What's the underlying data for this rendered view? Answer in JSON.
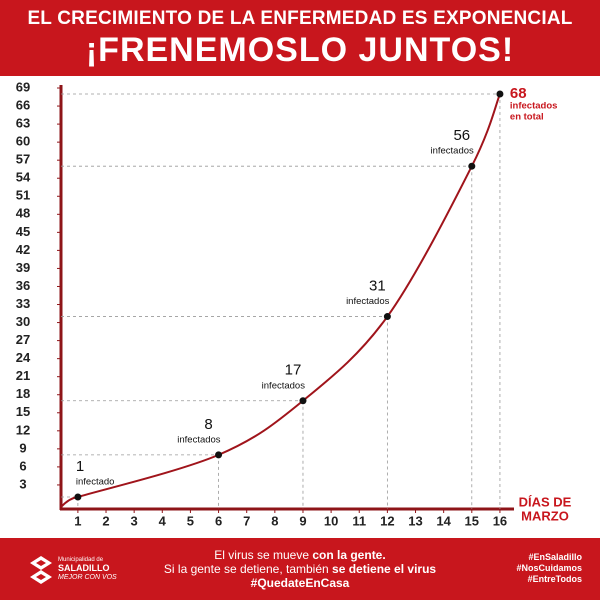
{
  "header": {
    "title_lines": [
      "EL CRECIMIENTO DE LA ENFERMEDAD ES EXPONENCIAL",
      "¡FRENEMOSLO JUNTOS!"
    ]
  },
  "chart_data": {
    "type": "line",
    "x_label_lines": [
      "DÍAS DE",
      "MARZO"
    ],
    "x": [
      1,
      6,
      9,
      12,
      15,
      16
    ],
    "series": [
      {
        "name": "infectados",
        "color": "#a0141b",
        "values": [
          1,
          8,
          17,
          31,
          56,
          68
        ]
      }
    ],
    "notes": [
      [
        "infectado"
      ],
      [
        "infectados"
      ],
      [
        "infectados"
      ],
      [
        "infectados"
      ],
      [
        "infectados"
      ],
      [
        "infectados",
        "en total"
      ]
    ],
    "xlim": [
      0.4,
      16.5
    ],
    "xticks": [
      1,
      2,
      3,
      4,
      5,
      6,
      7,
      8,
      9,
      10,
      11,
      12,
      13,
      14,
      15,
      16
    ],
    "ylim": [
      -1,
      70
    ],
    "yticks": [
      3,
      6,
      9,
      12,
      15,
      18,
      21,
      24,
      27,
      30,
      33,
      36,
      39,
      42,
      45,
      48,
      51,
      54,
      57,
      60,
      63,
      66,
      69
    ],
    "guides": true
  },
  "footer": {
    "logo_lines": [
      "Municipalidad de",
      "SALADILLO",
      "MEJOR CON VOS"
    ],
    "message": [
      [
        "El virus se mueve ",
        "con la gente."
      ],
      [
        "Si la gente se detiene, también ",
        "se detiene el virus"
      ],
      [
        "#QuedateEnCasa"
      ]
    ],
    "hashtags": [
      "#EnSaladillo",
      "#NosCuidamos",
      "#EntreTodos"
    ]
  }
}
